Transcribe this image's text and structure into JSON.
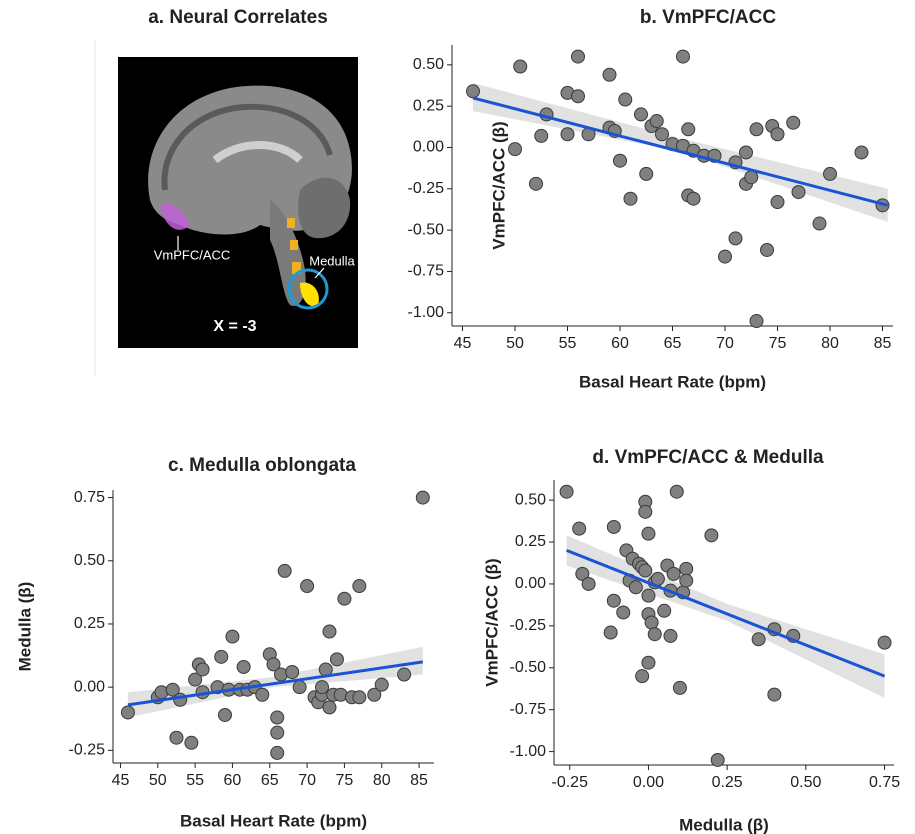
{
  "brain_panel": {
    "title": "a. Neural Correlates",
    "labels": [
      "VmPFC/ACC",
      "Medulla"
    ],
    "coordinate": "X = -3"
  },
  "chart_data": [
    {
      "type": "scatter",
      "title": "b. VmPFC/ACC",
      "xlabel": "Basal Heart Rate (bpm)",
      "ylabel": "VmPFC/ACC (β)",
      "color": "#808080",
      "x": [
        46,
        50,
        50.5,
        52,
        52.5,
        53,
        55,
        55,
        56,
        56,
        57,
        59,
        59,
        59.5,
        60,
        60.5,
        61,
        62,
        62.5,
        63,
        63.5,
        64,
        65,
        66,
        66,
        66.5,
        66.5,
        67,
        67,
        68,
        69,
        70,
        71,
        71,
        72,
        72,
        72.5,
        73,
        73,
        74,
        74.5,
        75,
        75,
        76.5,
        77,
        79,
        80,
        83,
        85
      ],
      "values": [
        0.34,
        -0.01,
        0.49,
        -0.22,
        0.07,
        0.2,
        0.33,
        0.08,
        0.55,
        0.31,
        0.08,
        0.44,
        0.12,
        0.1,
        -0.08,
        0.29,
        -0.31,
        0.2,
        -0.16,
        0.13,
        0.16,
        0.08,
        0.02,
        0.55,
        0.01,
        0.11,
        -0.29,
        -0.31,
        -0.02,
        -0.05,
        -0.05,
        -0.66,
        -0.55,
        -0.09,
        -0.03,
        -0.22,
        -0.18,
        0.11,
        -1.05,
        -0.62,
        0.13,
        0.08,
        -0.33,
        0.15,
        -0.27,
        -0.46,
        -0.16,
        -0.03,
        -0.35
      ],
      "fit": {
        "x": [
          46,
          85.5
        ],
        "values": [
          0.3,
          -0.35
        ],
        "color": "#1a53d6"
      },
      "band": {
        "x": [
          46,
          65.5,
          85.5
        ],
        "lower": [
          0.22,
          -0.02,
          -0.45
        ],
        "upper": [
          0.39,
          0.06,
          -0.25
        ]
      },
      "xlim": [
        44,
        86
      ],
      "ylim": [
        -1.08,
        0.62
      ],
      "xticks": [
        45,
        50,
        55,
        60,
        65,
        70,
        75,
        80,
        85
      ],
      "yticks": [
        {
          "value": 0.5,
          "label": "0.50"
        },
        0.25,
        {
          "value": 0,
          "label": "0.00"
        },
        -0.25,
        {
          "value": -0.5,
          "label": "-0.50"
        },
        -0.75,
        {
          "value": -1,
          "label": "-1.00"
        }
      ]
    },
    {
      "type": "scatter",
      "title": "c. Medulla oblongata",
      "xlabel": "Basal Heart Rate (bpm)",
      "ylabel": "Medulla (β)",
      "color": "#808080",
      "x": [
        46,
        50,
        50.5,
        52,
        52.5,
        53,
        54.5,
        55,
        55.5,
        56,
        56,
        58,
        58.5,
        59,
        59.5,
        60,
        61,
        61.5,
        62,
        63,
        64,
        65,
        65.5,
        66,
        66,
        66,
        66.5,
        67,
        68,
        69,
        70,
        71,
        71.5,
        72,
        72,
        72.5,
        73,
        73,
        73.5,
        74,
        74.5,
        75,
        76,
        77,
        77,
        79,
        80,
        83,
        85.5
      ],
      "values": [
        -0.1,
        -0.04,
        -0.02,
        -0.01,
        -0.2,
        -0.05,
        -0.22,
        0.03,
        0.09,
        0.07,
        -0.02,
        0.0,
        0.12,
        -0.11,
        -0.01,
        0.2,
        -0.01,
        0.08,
        -0.01,
        0.0,
        -0.03,
        0.13,
        0.09,
        -0.26,
        -0.18,
        -0.12,
        0.05,
        0.46,
        0.06,
        0.0,
        0.4,
        -0.04,
        -0.06,
        -0.03,
        0.0,
        0.07,
        -0.08,
        0.22,
        -0.03,
        0.11,
        -0.03,
        0.35,
        -0.04,
        0.4,
        -0.04,
        -0.03,
        0.01,
        0.05,
        0.75
      ],
      "fit": {
        "x": [
          46,
          85.5
        ],
        "values": [
          -0.07,
          0.1
        ],
        "color": "#1a53d6"
      },
      "band": {
        "x": [
          46,
          65.5,
          85.5
        ],
        "lower": [
          -0.12,
          0.0,
          0.05
        ],
        "upper": [
          -0.02,
          0.04,
          0.16
        ]
      },
      "xlim": [
        44,
        87
      ],
      "ylim": [
        -0.3,
        0.78
      ],
      "xticks": [
        45,
        50,
        55,
        60,
        65,
        70,
        75,
        80,
        85
      ],
      "yticks": [
        0.75,
        {
          "value": 0.5,
          "label": "0.50"
        },
        0.25,
        {
          "value": 0,
          "label": "0.00"
        },
        -0.25
      ]
    },
    {
      "type": "scatter",
      "title": "d. VmPFC/ACC & Medulla",
      "xlabel": "Medulla (β)",
      "ylabel": "VmPFC/ACC (β)",
      "color": "#808080",
      "x": [
        -0.26,
        -0.22,
        -0.21,
        -0.19,
        -0.12,
        -0.11,
        -0.11,
        -0.08,
        -0.07,
        -0.06,
        -0.05,
        -0.04,
        -0.03,
        -0.02,
        -0.02,
        -0.01,
        -0.01,
        -0.01,
        0.0,
        0.0,
        0.0,
        0.0,
        0.01,
        0.02,
        0.02,
        0.03,
        0.05,
        0.06,
        0.07,
        0.07,
        0.08,
        0.09,
        0.1,
        0.11,
        0.12,
        0.12,
        0.2,
        0.22,
        0.35,
        0.4,
        0.4,
        0.46,
        0.75
      ],
      "values": [
        0.55,
        0.33,
        0.06,
        0.0,
        -0.29,
        0.34,
        -0.1,
        -0.17,
        0.2,
        0.02,
        0.15,
        -0.02,
        0.12,
        0.1,
        -0.55,
        0.49,
        0.43,
        0.08,
        -0.07,
        -0.47,
        -0.18,
        0.3,
        -0.23,
        0.01,
        -0.3,
        0.03,
        -0.16,
        0.11,
        -0.04,
        -0.31,
        0.06,
        0.55,
        -0.62,
        -0.05,
        0.09,
        0.02,
        0.29,
        -1.05,
        -0.33,
        -0.27,
        -0.66,
        -0.31,
        -0.35
      ],
      "fit": {
        "x": [
          -0.26,
          0.75
        ],
        "values": [
          0.2,
          -0.55
        ],
        "color": "#1a53d6"
      },
      "band": {
        "x": [
          -0.26,
          0.25,
          0.75
        ],
        "lower": [
          0.11,
          -0.22,
          -0.68
        ],
        "upper": [
          0.29,
          -0.12,
          -0.42
        ]
      },
      "xlim": [
        -0.3,
        0.78
      ],
      "ylim": [
        -1.08,
        0.62
      ],
      "xticks": [
        -0.25,
        {
          "value": 0,
          "label": "0.00"
        },
        0.25,
        {
          "value": 0.5,
          "label": "0.50"
        },
        0.75
      ],
      "yticks": [
        {
          "value": 0.5,
          "label": "0.50"
        },
        0.25,
        {
          "value": 0,
          "label": "0.00"
        },
        -0.25,
        {
          "value": -0.5,
          "label": "-0.50"
        },
        -0.75,
        {
          "value": -1,
          "label": "-1.00"
        }
      ]
    }
  ]
}
